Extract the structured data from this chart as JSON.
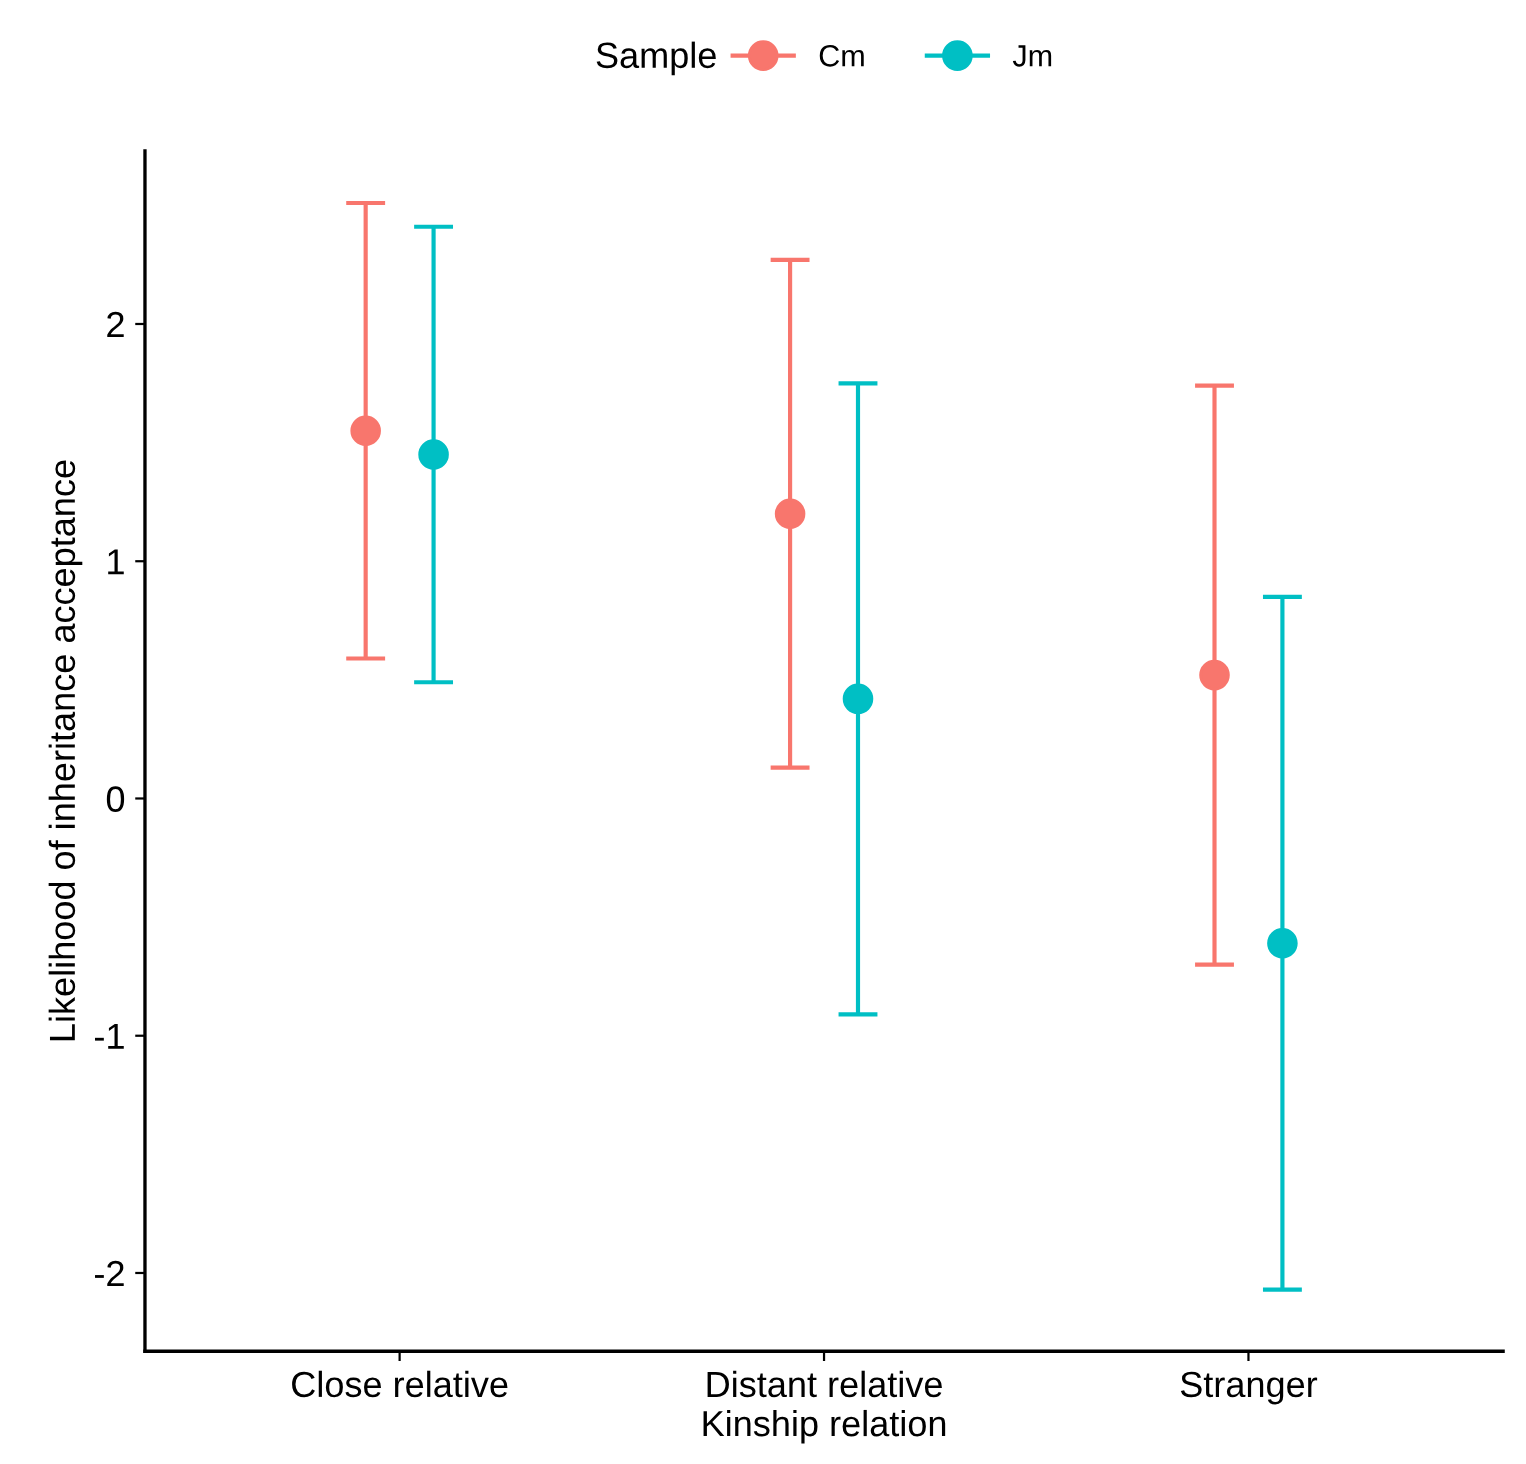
{
  "chart_data": {
    "type": "scatter",
    "xlabel": "Kinship relation",
    "ylabel": "Likelihood of inheritance acceptance",
    "legend_title": "Sample",
    "legend": "top",
    "grid": false,
    "marker": "circle",
    "categories": [
      "Close relative",
      "Distant relative",
      "Stranger"
    ],
    "ylim": [
      -2.33,
      2.73
    ],
    "yticks": [
      -2,
      -1,
      0,
      1,
      2
    ],
    "series": [
      {
        "name": "Cm",
        "color": "#f8766d",
        "values": [
          1.55,
          1.2,
          0.52
        ],
        "errors": [
          0.96,
          1.07,
          1.22
        ]
      },
      {
        "name": "Jm",
        "color": "#00bfc4",
        "values": [
          1.45,
          0.42,
          -0.61
        ],
        "errors": [
          0.96,
          1.33,
          1.46
        ]
      }
    ]
  }
}
